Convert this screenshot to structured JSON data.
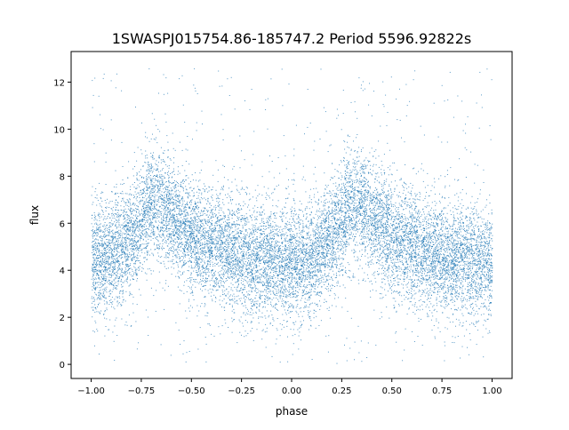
{
  "chart_data": {
    "type": "scatter",
    "title": "1SWASPJ015754.86-185747.2 Period 5596.92822s",
    "xlabel": "phase",
    "ylabel": "flux",
    "xlim": [
      -1.1,
      1.1
    ],
    "ylim": [
      -0.6,
      13.3
    ],
    "xticks": [
      -1.0,
      -0.75,
      -0.5,
      -0.25,
      0.0,
      0.25,
      0.5,
      0.75,
      1.0
    ],
    "xtick_labels": [
      "−1.00",
      "−0.75",
      "−0.50",
      "−0.25",
      "0.00",
      "0.25",
      "0.50",
      "0.75",
      "1.00"
    ],
    "yticks": [
      0,
      2,
      4,
      6,
      8,
      10,
      12
    ],
    "ytick_labels": [
      "0",
      "2",
      "4",
      "6",
      "8",
      "10",
      "12"
    ],
    "grid": false,
    "marker_color": "#1f77b4",
    "phase_range": [
      -1.0,
      1.0
    ],
    "flux_range": [
      0.0,
      12.6
    ],
    "mean_trend": {
      "phase": [
        -1.0,
        -0.9,
        -0.8,
        -0.7,
        -0.6,
        -0.5,
        -0.4,
        -0.3,
        -0.2,
        -0.1,
        0.0,
        0.1,
        0.2,
        0.3,
        0.4,
        0.5,
        0.6,
        0.7,
        0.8,
        0.9,
        1.0
      ],
      "flux": [
        4.4,
        4.6,
        5.4,
        6.9,
        6.4,
        5.5,
        5.0,
        4.7,
        4.5,
        4.4,
        4.3,
        4.5,
        5.4,
        6.9,
        6.3,
        5.4,
        5.0,
        4.7,
        4.5,
        4.4,
        4.4
      ]
    },
    "scatter_sd": 1.2
  }
}
